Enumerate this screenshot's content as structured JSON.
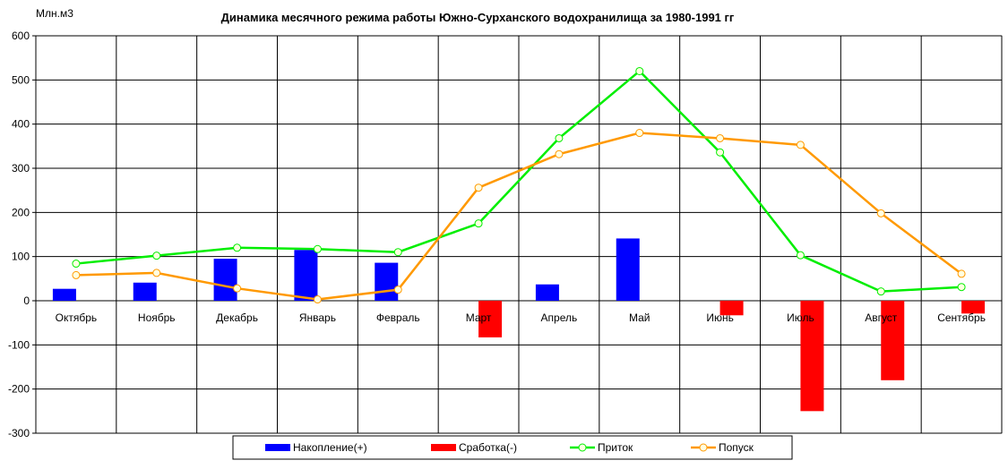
{
  "chart_data": {
    "type": "bar",
    "title": "Динамика месячного режима работы Южно-Сурханского водохранилища за 1980-1991 гг",
    "ylabel": "Млн.м3",
    "xlabel": "",
    "ylim": [
      -300,
      600
    ],
    "yticks": [
      600,
      500,
      400,
      300,
      200,
      100,
      0,
      -100,
      -200,
      -300
    ],
    "grid": true,
    "legend_position": "bottom",
    "categories": [
      "Октябрь",
      "Ноябрь",
      "Декабрь",
      "Январь",
      "Февраль",
      "Март",
      "Апрель",
      "Май",
      "Июнь",
      "Июль",
      "Август",
      "Сентябрь"
    ],
    "series": [
      {
        "name": "Накопление(+)",
        "kind": "bar",
        "color": "#0000ff",
        "values": [
          27,
          41,
          95,
          115,
          86,
          0,
          37,
          141,
          0,
          0,
          0,
          0
        ]
      },
      {
        "name": "Сработка(-)",
        "kind": "bar",
        "color": "#ff0000",
        "values": [
          0,
          0,
          0,
          0,
          0,
          -83,
          0,
          0,
          -33,
          -250,
          -180,
          -29
        ]
      },
      {
        "name": "Приток",
        "kind": "line",
        "color": "#00ee00",
        "values": [
          84,
          102,
          120,
          117,
          110,
          175,
          368,
          520,
          336,
          103,
          21,
          31
        ]
      },
      {
        "name": "Попуск",
        "kind": "line",
        "color": "#ff9900",
        "values": [
          58,
          63,
          28,
          3,
          25,
          256,
          332,
          380,
          368,
          353,
          198,
          61
        ]
      }
    ]
  }
}
